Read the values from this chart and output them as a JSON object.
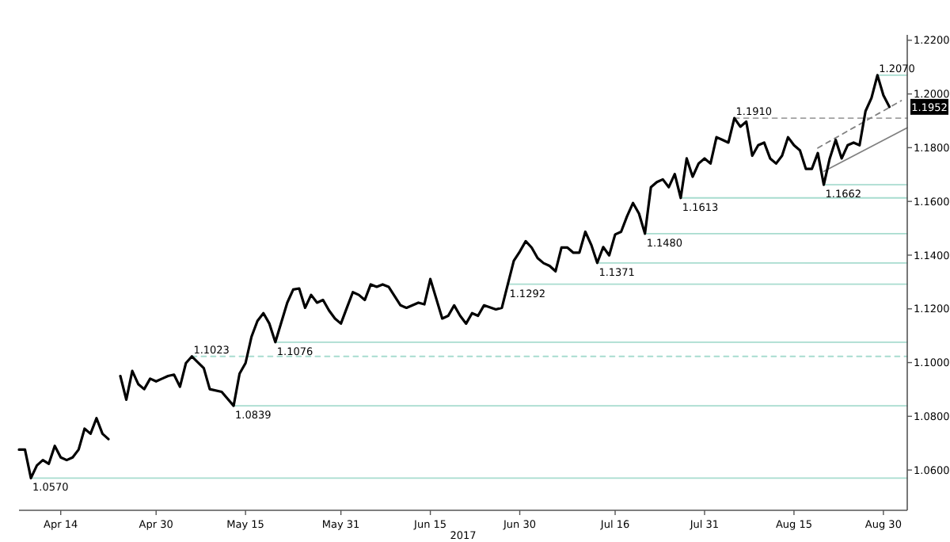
{
  "chart_data": {
    "type": "line",
    "grid": false,
    "marker": "none",
    "xlim": [
      "2017-04-07",
      "2017-09-03"
    ],
    "xticks": [
      {
        "value": "2017-04-14",
        "label": "Apr 14"
      },
      {
        "value": "2017-04-30",
        "label": "Apr 30"
      },
      {
        "value": "2017-05-15",
        "label": "May 15"
      },
      {
        "value": "2017-05-31",
        "label": "May 31"
      },
      {
        "value": "2017-06-15",
        "label": "Jun 15"
      },
      {
        "value": "2017-06-30",
        "label": "Jun 30"
      },
      {
        "value": "2017-07-16",
        "label": "Jul 16"
      },
      {
        "value": "2017-07-31",
        "label": "Jul 31"
      },
      {
        "value": "2017-08-15",
        "label": "Aug 15"
      },
      {
        "value": "2017-08-30",
        "label": "Aug 30"
      }
    ],
    "ylim": [
      1.045,
      1.222
    ],
    "yticks": [
      {
        "value": 1.06,
        "label": "1.0600"
      },
      {
        "value": 1.08,
        "label": "1.0800"
      },
      {
        "value": 1.1,
        "label": "1.1000"
      },
      {
        "value": 1.12,
        "label": "1.1200"
      },
      {
        "value": 1.14,
        "label": "1.1400"
      },
      {
        "value": 1.16,
        "label": "1.1600"
      },
      {
        "value": 1.18,
        "label": "1.1800"
      },
      {
        "value": 1.2,
        "label": "1.2000"
      },
      {
        "value": 1.22,
        "label": "1.2200"
      }
    ],
    "x": [
      "2017-04-07",
      "2017-04-08",
      "2017-04-09",
      "2017-04-10",
      "2017-04-11",
      "2017-04-12",
      "2017-04-13",
      "2017-04-14",
      "2017-04-15",
      "2017-04-16",
      "2017-04-17",
      "2017-04-18",
      "2017-04-19",
      "2017-04-20",
      "2017-04-21",
      "2017-04-22",
      "2017-04-23",
      "2017-04-24",
      "2017-04-25",
      "2017-04-26",
      "2017-04-27",
      "2017-04-28",
      "2017-04-29",
      "2017-04-30",
      "2017-05-01",
      "2017-05-02",
      "2017-05-03",
      "2017-05-04",
      "2017-05-05",
      "2017-05-06",
      "2017-05-08",
      "2017-05-09",
      "2017-05-11",
      "2017-05-13",
      "2017-05-14",
      "2017-05-15",
      "2017-05-16",
      "2017-05-17",
      "2017-05-18",
      "2017-05-19",
      "2017-05-20",
      "2017-05-22",
      "2017-05-23",
      "2017-05-24",
      "2017-05-25",
      "2017-05-26",
      "2017-05-27",
      "2017-05-28",
      "2017-05-29",
      "2017-05-30",
      "2017-05-31",
      "2017-06-01",
      "2017-06-02",
      "2017-06-03",
      "2017-06-04",
      "2017-06-05",
      "2017-06-06",
      "2017-06-07",
      "2017-06-08",
      "2017-06-10",
      "2017-06-11",
      "2017-06-13",
      "2017-06-14",
      "2017-06-15",
      "2017-06-17",
      "2017-06-18",
      "2017-06-19",
      "2017-06-20",
      "2017-06-21",
      "2017-06-22",
      "2017-06-23",
      "2017-06-24",
      "2017-06-26",
      "2017-06-27",
      "2017-06-28",
      "2017-06-29",
      "2017-06-30",
      "2017-07-01",
      "2017-07-02",
      "2017-07-03",
      "2017-07-04",
      "2017-07-05",
      "2017-07-06",
      "2017-07-07",
      "2017-07-08",
      "2017-07-09",
      "2017-07-10",
      "2017-07-11",
      "2017-07-12",
      "2017-07-13",
      "2017-07-14",
      "2017-07-15",
      "2017-07-16",
      "2017-07-17",
      "2017-07-18",
      "2017-07-19",
      "2017-07-20",
      "2017-07-21",
      "2017-07-22",
      "2017-07-23",
      "2017-07-24",
      "2017-07-25",
      "2017-07-26",
      "2017-07-27",
      "2017-07-28",
      "2017-07-29",
      "2017-07-30",
      "2017-07-31",
      "2017-08-01",
      "2017-08-02",
      "2017-08-03",
      "2017-08-04",
      "2017-08-05",
      "2017-08-06",
      "2017-08-07",
      "2017-08-08",
      "2017-08-09",
      "2017-08-10",
      "2017-08-11",
      "2017-08-12",
      "2017-08-13",
      "2017-08-14",
      "2017-08-15",
      "2017-08-16",
      "2017-08-17",
      "2017-08-18",
      "2017-08-19",
      "2017-08-20",
      "2017-08-21",
      "2017-08-22",
      "2017-08-23",
      "2017-08-24",
      "2017-08-25",
      "2017-08-26",
      "2017-08-27",
      "2017-08-28",
      "2017-08-29",
      "2017-08-30",
      "2017-08-31"
    ],
    "series": [
      {
        "type": "line",
        "color": "#000000",
        "values": [
          1.0676,
          1.0676,
          1.057,
          1.0617,
          1.0637,
          1.0623,
          1.069,
          1.0647,
          1.0637,
          1.0647,
          1.0676,
          1.0754,
          1.0735,
          1.0793,
          1.0735,
          1.0715,
          null,
          1.095,
          1.0862,
          1.0969,
          1.092,
          1.0901,
          1.094,
          1.093,
          1.094,
          1.095,
          1.0955,
          1.091,
          1.0998,
          1.1023,
          1.0979,
          1.0901,
          1.0891,
          1.0839,
          1.0959,
          1.0998,
          1.1096,
          1.1155,
          1.1184,
          1.1145,
          1.1076,
          1.1223,
          1.1272,
          1.1276,
          1.1204,
          1.1252,
          1.1223,
          1.1233,
          1.1194,
          1.1164,
          1.1145,
          1.1204,
          1.1262,
          1.1252,
          1.1233,
          1.1291,
          1.1282,
          1.1291,
          1.1282,
          1.1213,
          1.1204,
          1.1223,
          1.1217,
          1.1311,
          1.1164,
          1.1174,
          1.1213,
          1.1174,
          1.1145,
          1.1184,
          1.1174,
          1.1213,
          1.1198,
          1.1204,
          1.1292,
          1.1379,
          1.1413,
          1.1452,
          1.1428,
          1.1389,
          1.137,
          1.136,
          1.134,
          1.1428,
          1.1428,
          1.1409,
          1.1409,
          1.1487,
          1.1438,
          1.1371,
          1.143,
          1.1399,
          1.1477,
          1.1487,
          1.1545,
          1.1594,
          1.1555,
          1.148,
          1.1653,
          1.1672,
          1.1682,
          1.1653,
          1.1702,
          1.1613,
          1.176,
          1.1692,
          1.1741,
          1.176,
          1.1741,
          1.1839,
          1.1829,
          1.1819,
          1.191,
          1.1878,
          1.1897,
          1.177,
          1.1809,
          1.1819,
          1.176,
          1.1741,
          1.177,
          1.1839,
          1.1809,
          1.179,
          1.1721,
          1.1721,
          1.178,
          1.1662,
          1.176,
          1.1829,
          1.176,
          1.1809,
          1.1819,
          1.1809,
          1.1936,
          1.1985,
          1.207,
          1.1995,
          1.1952
        ]
      },
      {
        "type": "line",
        "color": "#a8dccf",
        "x": [
          "2017-04-09",
          "2017-09-03"
        ],
        "values": [
          1.057,
          1.057
        ]
      },
      {
        "type": "line",
        "color": "#a8dccf",
        "x": [
          "2017-05-13",
          "2017-09-03"
        ],
        "values": [
          1.0839,
          1.0839
        ]
      },
      {
        "type": "line",
        "color": "#a8dccf",
        "line_style": "dashed",
        "x": [
          "2017-05-06",
          "2017-09-03"
        ],
        "values": [
          1.1023,
          1.1023
        ]
      },
      {
        "type": "line",
        "color": "#a8dccf",
        "x": [
          "2017-05-20",
          "2017-09-03"
        ],
        "values": [
          1.1076,
          1.1076
        ]
      },
      {
        "type": "line",
        "color": "#a8dccf",
        "x": [
          "2017-06-28",
          "2017-09-03"
        ],
        "values": [
          1.1292,
          1.1292
        ]
      },
      {
        "type": "line",
        "color": "#a8dccf",
        "x": [
          "2017-07-13",
          "2017-09-03"
        ],
        "values": [
          1.1371,
          1.1371
        ]
      },
      {
        "type": "line",
        "color": "#a8dccf",
        "x": [
          "2017-07-21",
          "2017-09-03"
        ],
        "values": [
          1.148,
          1.148
        ]
      },
      {
        "type": "line",
        "color": "#a8dccf",
        "x": [
          "2017-07-27",
          "2017-09-03"
        ],
        "values": [
          1.1613,
          1.1613
        ]
      },
      {
        "type": "line",
        "color": "#a8dccf",
        "x": [
          "2017-08-20",
          "2017-09-03"
        ],
        "values": [
          1.1662,
          1.1662
        ]
      },
      {
        "type": "line",
        "color": "#a0a0a0",
        "line_style": "dashed",
        "x": [
          "2017-08-05",
          "2017-09-03"
        ],
        "values": [
          1.191,
          1.191
        ]
      },
      {
        "type": "line",
        "color": "#a8dccf",
        "x": [
          "2017-08-29",
          "2017-09-03"
        ],
        "values": [
          1.207,
          1.207
        ]
      },
      {
        "type": "line",
        "color": "#808080",
        "x": [
          "2017-08-20",
          "2017-09-03"
        ],
        "values": [
          1.1712,
          1.1874
        ]
      },
      {
        "type": "line",
        "color": "#808080",
        "line_style": "dashed",
        "x": [
          "2017-08-19",
          "2017-09-02"
        ],
        "values": [
          1.1799,
          1.1975
        ]
      }
    ],
    "annotations": [
      {
        "text": "1.0570",
        "x": "2017-04-09",
        "y": 1.057
      },
      {
        "text": "1.0839",
        "x": "2017-05-13",
        "y": 1.0839
      },
      {
        "text": "1.1023",
        "x": "2017-05-06",
        "y": 1.1023
      },
      {
        "text": "1.1076",
        "x": "2017-05-20",
        "y": 1.1076
      },
      {
        "text": "1.1292",
        "x": "2017-06-28",
        "y": 1.1292
      },
      {
        "text": "1.1371",
        "x": "2017-07-13",
        "y": 1.1371
      },
      {
        "text": "1.1480",
        "x": "2017-07-21",
        "y": 1.148
      },
      {
        "text": "1.1613",
        "x": "2017-07-27",
        "y": 1.1613
      },
      {
        "text": "1.1662",
        "x": "2017-08-20",
        "y": 1.1662
      },
      {
        "text": "1.1910",
        "x": "2017-08-05",
        "y": 1.191
      },
      {
        "text": "1.2070",
        "x": "2017-08-29",
        "y": 1.207
      },
      {
        "text": "1.1952",
        "y": 1.1952
      },
      "2017"
    ]
  }
}
